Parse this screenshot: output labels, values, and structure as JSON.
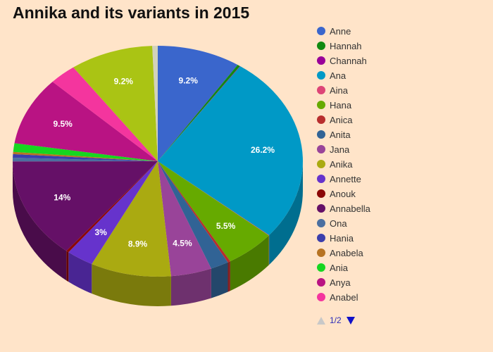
{
  "chart_data": {
    "type": "pie",
    "title": "Annika and its variants in 2015",
    "slices": [
      {
        "name": "Anne",
        "value": 9.2,
        "color": "#3a66cc",
        "label": "9.2%"
      },
      {
        "name": "Hannah",
        "value": 0.3,
        "color": "#118a11",
        "label": ""
      },
      {
        "name": "Channah",
        "value": 0.05,
        "color": "#990099",
        "label": ""
      },
      {
        "name": "Ana",
        "value": 26.2,
        "color": "#0099c6",
        "label": "26.2%"
      },
      {
        "name": "Aina",
        "value": 0.05,
        "color": "#dd4477",
        "label": ""
      },
      {
        "name": "Hana",
        "value": 5.5,
        "color": "#66aa00",
        "label": "5.5%"
      },
      {
        "name": "Anica",
        "value": 0.3,
        "color": "#b82e2e",
        "label": ""
      },
      {
        "name": "Anita",
        "value": 2.0,
        "color": "#316395",
        "label": ""
      },
      {
        "name": "Jana",
        "value": 4.5,
        "color": "#994499",
        "label": "4.5%"
      },
      {
        "name": "Anika",
        "value": 8.9,
        "color": "#aaaa11",
        "label": "8.9%"
      },
      {
        "name": "Annette",
        "value": 3.0,
        "color": "#6633cc",
        "label": "3%"
      },
      {
        "name": "Anouk",
        "value": 0.3,
        "color": "#8b0707",
        "label": ""
      },
      {
        "name": "Annabella",
        "value": 14.0,
        "color": "#651067",
        "label": "14%"
      },
      {
        "name": "Ona",
        "value": 0.5,
        "color": "#4b6fa0",
        "label": ""
      },
      {
        "name": "Hania",
        "value": 0.5,
        "color": "#3b3eac",
        "label": ""
      },
      {
        "name": "Anabela",
        "value": 0.3,
        "color": "#b77322",
        "label": ""
      },
      {
        "name": "Ania",
        "value": 1.2,
        "color": "#16d620",
        "label": ""
      },
      {
        "name": "Anya",
        "value": 9.5,
        "color": "#b91383",
        "label": "9.5%"
      },
      {
        "name": "Anabel",
        "value": 3.0,
        "color": "#f4359e",
        "label": ""
      },
      {
        "name": "",
        "value": 9.2,
        "color": "#aac414",
        "label": "9.2%"
      },
      {
        "name": "",
        "value": 0.6,
        "color": "#d2d2bb",
        "label": ""
      }
    ]
  },
  "legend": {
    "items": [
      {
        "label": "Anne",
        "color": "#3a66cc"
      },
      {
        "label": "Hannah",
        "color": "#118a11"
      },
      {
        "label": "Channah",
        "color": "#990099"
      },
      {
        "label": "Ana",
        "color": "#0099c6"
      },
      {
        "label": "Aina",
        "color": "#dd4477"
      },
      {
        "label": "Hana",
        "color": "#66aa00"
      },
      {
        "label": "Anica",
        "color": "#b82e2e"
      },
      {
        "label": "Anita",
        "color": "#316395"
      },
      {
        "label": "Jana",
        "color": "#994499"
      },
      {
        "label": "Anika",
        "color": "#aaaa11"
      },
      {
        "label": "Annette",
        "color": "#6633cc"
      },
      {
        "label": "Anouk",
        "color": "#8b0707"
      },
      {
        "label": "Annabella",
        "color": "#651067"
      },
      {
        "label": "Ona",
        "color": "#4b6fa0"
      },
      {
        "label": "Hania",
        "color": "#3b3eac"
      },
      {
        "label": "Anabela",
        "color": "#b77322"
      },
      {
        "label": "Ania",
        "color": "#16d620"
      },
      {
        "label": "Anya",
        "color": "#b91383"
      },
      {
        "label": "Anabel",
        "color": "#f4359e"
      }
    ]
  },
  "pager": {
    "text": "1/2"
  }
}
